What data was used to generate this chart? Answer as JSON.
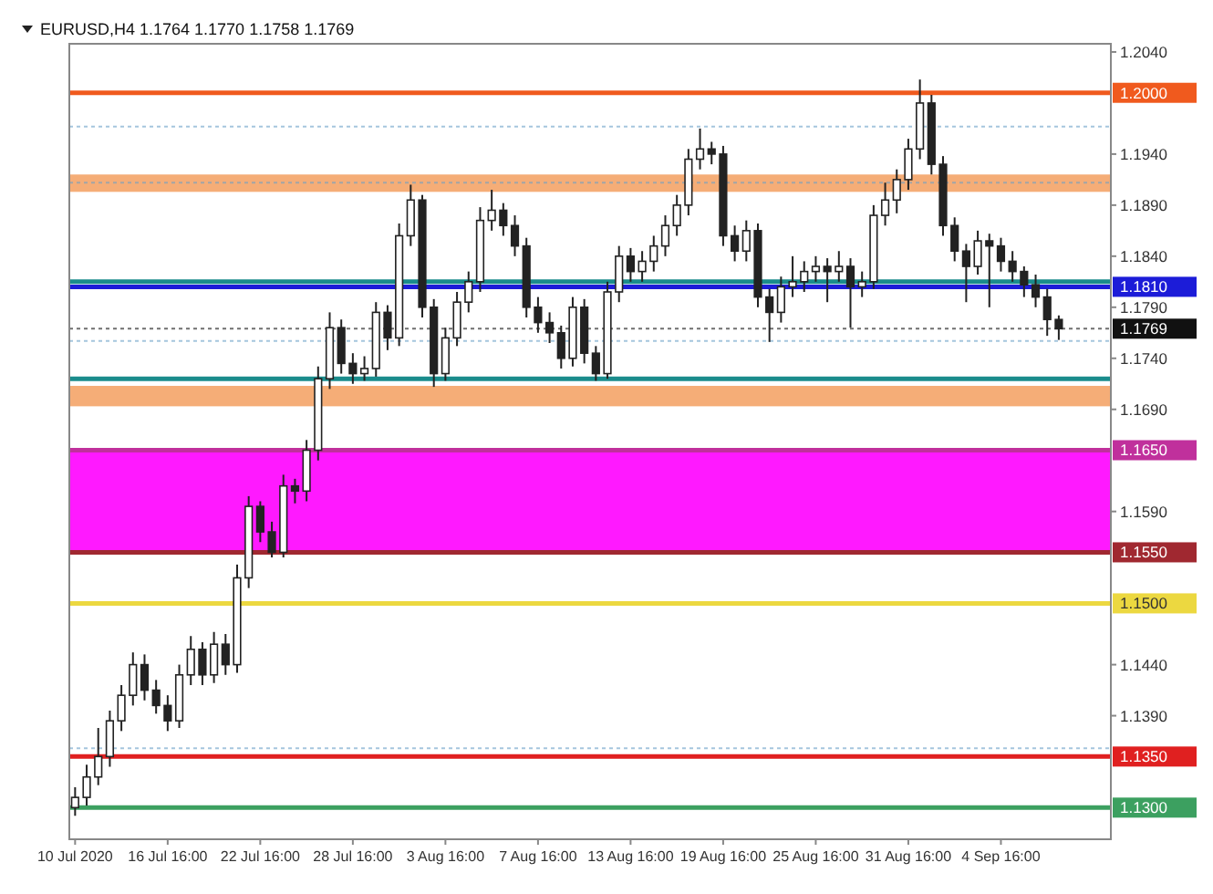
{
  "chart_data": {
    "type": "candlestick",
    "title": "EURUSD,H4  1.1764 1.1770 1.1758 1.1769",
    "categories": [
      "10 Jul 2020",
      null,
      null,
      null,
      null,
      null,
      null,
      null,
      "16 Jul 16:00",
      null,
      null,
      null,
      null,
      null,
      null,
      null,
      "22 Jul 16:00",
      null,
      null,
      null,
      null,
      null,
      null,
      null,
      "28 Jul 16:00",
      null,
      null,
      null,
      null,
      null,
      null,
      null,
      "3 Aug 16:00",
      null,
      null,
      null,
      null,
      null,
      null,
      null,
      "7 Aug 16:00",
      null,
      null,
      null,
      null,
      null,
      null,
      null,
      "13 Aug 16:00",
      null,
      null,
      null,
      null,
      null,
      null,
      null,
      "19 Aug 16:00",
      null,
      null,
      null,
      null,
      null,
      null,
      null,
      "25 Aug 16:00",
      null,
      null,
      null,
      null,
      null,
      null,
      null,
      "31 Aug 16:00",
      null,
      null,
      null,
      null,
      null,
      null,
      null,
      "4 Sep 16:00",
      null,
      null,
      null,
      null,
      null,
      null,
      null,
      null,
      null
    ],
    "ohlc": [
      [
        1.13,
        1.132,
        1.1292,
        1.131
      ],
      [
        1.131,
        1.1342,
        1.1302,
        1.133
      ],
      [
        1.133,
        1.1378,
        1.1322,
        1.135
      ],
      [
        1.135,
        1.1395,
        1.134,
        1.1385
      ],
      [
        1.1385,
        1.142,
        1.1375,
        1.141
      ],
      [
        1.141,
        1.1452,
        1.14,
        1.144
      ],
      [
        1.144,
        1.145,
        1.1405,
        1.1415
      ],
      [
        1.1415,
        1.1425,
        1.1392,
        1.14
      ],
      [
        1.14,
        1.141,
        1.1375,
        1.1385
      ],
      [
        1.1385,
        1.144,
        1.1378,
        1.143
      ],
      [
        1.143,
        1.1468,
        1.142,
        1.1455
      ],
      [
        1.1455,
        1.1462,
        1.142,
        1.143
      ],
      [
        1.143,
        1.1472,
        1.1422,
        1.146
      ],
      [
        1.146,
        1.147,
        1.143,
        1.144
      ],
      [
        1.144,
        1.1538,
        1.1432,
        1.1525
      ],
      [
        1.1525,
        1.1605,
        1.1515,
        1.1595
      ],
      [
        1.1595,
        1.16,
        1.156,
        1.157
      ],
      [
        1.157,
        1.158,
        1.1545,
        1.155
      ],
      [
        1.155,
        1.1626,
        1.1545,
        1.1615
      ],
      [
        1.1615,
        1.1622,
        1.1598,
        1.161
      ],
      [
        1.161,
        1.166,
        1.16,
        1.165
      ],
      [
        1.165,
        1.1732,
        1.164,
        1.172
      ],
      [
        1.172,
        1.1785,
        1.171,
        1.177
      ],
      [
        1.177,
        1.1778,
        1.1725,
        1.1735
      ],
      [
        1.1735,
        1.1745,
        1.1715,
        1.1725
      ],
      [
        1.1725,
        1.1742,
        1.1718,
        1.173
      ],
      [
        1.173,
        1.1795,
        1.1722,
        1.1785
      ],
      [
        1.1785,
        1.1792,
        1.1748,
        1.176
      ],
      [
        1.176,
        1.1872,
        1.1752,
        1.186
      ],
      [
        1.186,
        1.191,
        1.185,
        1.1895
      ],
      [
        1.1895,
        1.19,
        1.178,
        1.179
      ],
      [
        1.179,
        1.1798,
        1.1712,
        1.1725
      ],
      [
        1.1725,
        1.177,
        1.1718,
        1.176
      ],
      [
        1.176,
        1.1805,
        1.1752,
        1.1795
      ],
      [
        1.1795,
        1.1825,
        1.1785,
        1.1815
      ],
      [
        1.1815,
        1.1888,
        1.1805,
        1.1875
      ],
      [
        1.1875,
        1.1905,
        1.1865,
        1.1885
      ],
      [
        1.1885,
        1.1892,
        1.186,
        1.187
      ],
      [
        1.187,
        1.188,
        1.184,
        1.185
      ],
      [
        1.185,
        1.1858,
        1.178,
        1.179
      ],
      [
        1.179,
        1.18,
        1.1765,
        1.1775
      ],
      [
        1.1775,
        1.1785,
        1.1755,
        1.1765
      ],
      [
        1.1765,
        1.1772,
        1.173,
        1.174
      ],
      [
        1.174,
        1.18,
        1.1732,
        1.179
      ],
      [
        1.179,
        1.1798,
        1.1735,
        1.1745
      ],
      [
        1.1745,
        1.1752,
        1.1718,
        1.1725
      ],
      [
        1.1725,
        1.1815,
        1.172,
        1.1805
      ],
      [
        1.1805,
        1.185,
        1.1795,
        1.184
      ],
      [
        1.184,
        1.1848,
        1.1815,
        1.1825
      ],
      [
        1.1825,
        1.1845,
        1.1815,
        1.1835
      ],
      [
        1.1835,
        1.186,
        1.1825,
        1.185
      ],
      [
        1.185,
        1.188,
        1.184,
        1.187
      ],
      [
        1.187,
        1.19,
        1.186,
        1.189
      ],
      [
        1.189,
        1.1945,
        1.188,
        1.1935
      ],
      [
        1.1935,
        1.1965,
        1.1925,
        1.1945
      ],
      [
        1.1945,
        1.1952,
        1.193,
        1.194
      ],
      [
        1.194,
        1.1948,
        1.185,
        1.186
      ],
      [
        1.186,
        1.187,
        1.1835,
        1.1845
      ],
      [
        1.1845,
        1.1875,
        1.1835,
        1.1865
      ],
      [
        1.1865,
        1.1872,
        1.179,
        1.18
      ],
      [
        1.18,
        1.1808,
        1.1756,
        1.1785
      ],
      [
        1.1785,
        1.182,
        1.1775,
        1.181
      ],
      [
        1.181,
        1.184,
        1.18,
        1.1815
      ],
      [
        1.1815,
        1.1835,
        1.1805,
        1.1825
      ],
      [
        1.1825,
        1.184,
        1.1815,
        1.183
      ],
      [
        1.183,
        1.1838,
        1.1795,
        1.1825
      ],
      [
        1.1825,
        1.1845,
        1.1815,
        1.183
      ],
      [
        1.183,
        1.1838,
        1.177,
        1.181
      ],
      [
        1.181,
        1.1825,
        1.18,
        1.1815
      ],
      [
        1.1815,
        1.189,
        1.1808,
        1.188
      ],
      [
        1.188,
        1.1912,
        1.187,
        1.1895
      ],
      [
        1.1895,
        1.1925,
        1.1882,
        1.1915
      ],
      [
        1.1915,
        1.1955,
        1.1905,
        1.1945
      ],
      [
        1.1945,
        1.2013,
        1.1935,
        1.199
      ],
      [
        1.199,
        1.1998,
        1.192,
        1.193
      ],
      [
        1.193,
        1.1938,
        1.186,
        1.187
      ],
      [
        1.187,
        1.1878,
        1.1835,
        1.1845
      ],
      [
        1.1845,
        1.1852,
        1.1795,
        1.183
      ],
      [
        1.183,
        1.1865,
        1.1822,
        1.1855
      ],
      [
        1.1855,
        1.1862,
        1.179,
        1.185
      ],
      [
        1.185,
        1.1858,
        1.1825,
        1.1835
      ],
      [
        1.1835,
        1.1845,
        1.1815,
        1.1825
      ],
      [
        1.1825,
        1.183,
        1.18,
        1.1812
      ],
      [
        1.1812,
        1.1822,
        1.179,
        1.18
      ],
      [
        1.18,
        1.1808,
        1.1762,
        1.1778
      ],
      [
        1.1778,
        1.1782,
        1.1758,
        1.1769
      ],
      null,
      null,
      null,
      null
    ],
    "ylim": [
      1.1269,
      1.2048
    ],
    "yticks": [
      {
        "value": 1.204,
        "label": "1.2040"
      },
      {
        "value": 1.194,
        "label": "1.1940"
      },
      {
        "value": 1.189,
        "label": "1.1890"
      },
      {
        "value": 1.184,
        "label": "1.1840"
      },
      {
        "value": 1.179,
        "label": "1.1790"
      },
      {
        "value": 1.174,
        "label": "1.1740"
      },
      {
        "value": 1.169,
        "label": "1.1690"
      },
      {
        "value": 1.159,
        "label": "1.1590"
      },
      {
        "value": 1.144,
        "label": "1.1440"
      },
      {
        "value": 1.139,
        "label": "1.1390"
      }
    ],
    "bands": [
      {
        "axis": "y",
        "from": 1.155,
        "to": 1.165,
        "color": "#ff00ff"
      },
      {
        "axis": "y",
        "from": 1.1903,
        "to": 1.192,
        "color": "#f4a468"
      },
      {
        "axis": "y",
        "from": 1.1693,
        "to": 1.1713,
        "color": "#f4a468"
      }
    ],
    "ref_lines": [
      {
        "axis": "y",
        "value": 1.2,
        "label": "1.2000",
        "color": "#f05a1e",
        "line_style": "solid"
      },
      {
        "axis": "y",
        "value": 1.1815,
        "color": "#1a8c8c",
        "line_style": "solid"
      },
      {
        "axis": "y",
        "value": 1.181,
        "label": "1.1810",
        "color": "#1c1cd8",
        "line_style": "solid"
      },
      {
        "axis": "y",
        "value": 1.1769,
        "label": "1.1769",
        "color": "#111111",
        "line_style": "dotted"
      },
      {
        "axis": "y",
        "value": 1.172,
        "color": "#1a8c8c",
        "line_style": "solid"
      },
      {
        "axis": "y",
        "value": 1.165,
        "label": "1.1650",
        "color": "#c0309c",
        "line_style": "solid"
      },
      {
        "axis": "y",
        "value": 1.155,
        "label": "1.1550",
        "color": "#a02830",
        "line_style": "solid"
      },
      {
        "axis": "y",
        "value": 1.15,
        "label": "1.1500",
        "color": "#ecd840",
        "line_style": "solid"
      },
      {
        "axis": "y",
        "value": 1.135,
        "label": "1.1350",
        "color": "#e02020",
        "line_style": "solid"
      },
      {
        "axis": "y",
        "value": 1.13,
        "label": "1.1300",
        "color": "#3ca060",
        "line_style": "solid"
      },
      {
        "axis": "y",
        "value": 1.1967,
        "color": "#6aa0c8",
        "line_style": "dotted"
      },
      {
        "axis": "y",
        "value": 1.1912,
        "color": "#6aa0c8",
        "line_style": "dotted"
      },
      {
        "axis": "y",
        "value": 1.1757,
        "color": "#6aa0c8",
        "line_style": "dotted"
      },
      {
        "axis": "y",
        "value": 1.1358,
        "color": "#6aa0c8",
        "line_style": "dotted"
      }
    ],
    "grid": false
  }
}
